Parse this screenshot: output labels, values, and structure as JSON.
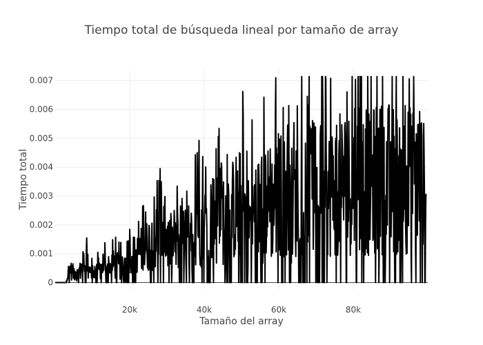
{
  "chart_data": {
    "type": "line",
    "title": "Tiempo total de búsqueda lineal por tamaño de array",
    "xlabel": "Tamaño del array",
    "ylabel": "Tiempo total",
    "xlim": [
      0,
      100000
    ],
    "ylim": [
      -0.00025,
      0.0074
    ],
    "x_ticks": [
      20000,
      40000,
      60000,
      80000
    ],
    "x_tick_labels": [
      "20k",
      "40k",
      "60k",
      "80k"
    ],
    "y_ticks": [
      0,
      0.001,
      0.002,
      0.003,
      0.004,
      0.005,
      0.006,
      0.007
    ],
    "y_tick_labels": [
      "0",
      "0.001",
      "0.002",
      "0.003",
      "0.004",
      "0.005",
      "0.006",
      "0.007"
    ],
    "grid": true,
    "line_color": "#000000",
    "series": [
      {
        "x": [
          0,
          2000,
          4000,
          6000,
          8000,
          10000,
          12000,
          14000,
          16000,
          18000,
          20000,
          22000,
          24000,
          26000,
          28000,
          30000,
          32000,
          34000,
          36000,
          38000,
          40000,
          42000,
          44000,
          46000,
          48000,
          50000,
          52000,
          54000,
          56000,
          58000,
          60000,
          62000,
          64000,
          66000,
          68000,
          70000,
          72000,
          74000,
          76000,
          78000,
          80000,
          82000,
          84000,
          86000,
          88000,
          90000,
          92000,
          94000,
          96000,
          98000,
          99500
        ],
        "y": [
          0,
          0,
          0.0005,
          0.0003,
          0.0008,
          0.0003,
          0.0005,
          0.0006,
          0.0007,
          0.0005,
          0.001,
          0.001,
          0.0012,
          0.0015,
          0.0017,
          0.0015,
          0.0013,
          0.0018,
          0.0012,
          0.0025,
          0.0018,
          0.0023,
          0.0024,
          0.0025,
          0.0026,
          0.0028,
          0.0022,
          0.0025,
          0.003,
          0.0027,
          0.0032,
          0.003,
          0.0028,
          0.0031,
          0.0032,
          0.0033,
          0.003,
          0.0032,
          0.0034,
          0.0036,
          0.0035,
          0.0036,
          0.0034,
          0.0037,
          0.0036,
          0.0038,
          0.0035,
          0.0037,
          0.0036,
          0.0038,
          0.003
        ],
        "noise_note_visible": false
      }
    ]
  }
}
